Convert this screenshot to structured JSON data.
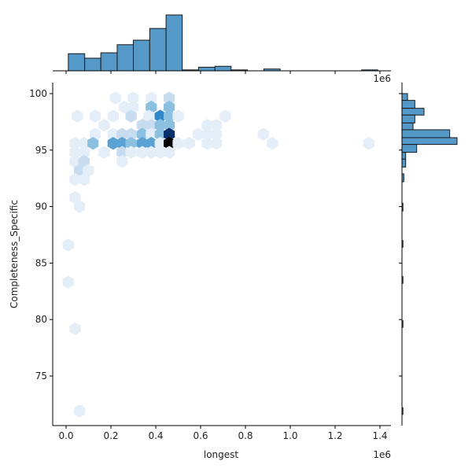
{
  "chart_data": {
    "type": "hexbin",
    "kind": "jointplot",
    "title": "",
    "xlabel": "longest",
    "ylabel": "Completeness_Specific",
    "x_offset_label": "1e6",
    "top_offset_label": "1e6",
    "xlim": [
      -0.05,
      1.45
    ],
    "ylim": [
      70.5,
      101
    ],
    "x_ticks": [
      0.0,
      0.2,
      0.4,
      0.6,
      0.8,
      1.0,
      1.2,
      1.4
    ],
    "x_tick_labels": [
      "0.0",
      "0.2",
      "0.4",
      "0.6",
      "0.8",
      "1.0",
      "1.2",
      "1.4"
    ],
    "y_ticks": [
      75,
      80,
      85,
      90,
      95,
      100
    ],
    "y_tick_labels": [
      "75",
      "80",
      "85",
      "90",
      "95",
      "100"
    ],
    "colormap": "Blues",
    "hexbins": [
      {
        "x": 0.22,
        "y": 99.6,
        "level": 1
      },
      {
        "x": 0.3,
        "y": 99.6,
        "level": 1
      },
      {
        "x": 0.38,
        "y": 99.6,
        "level": 1
      },
      {
        "x": 0.46,
        "y": 99.6,
        "level": 2
      },
      {
        "x": 0.26,
        "y": 98.8,
        "level": 1
      },
      {
        "x": 0.3,
        "y": 98.8,
        "level": 1
      },
      {
        "x": 0.38,
        "y": 98.8,
        "level": 3
      },
      {
        "x": 0.46,
        "y": 98.8,
        "level": 3
      },
      {
        "x": 0.05,
        "y": 98.0,
        "level": 1
      },
      {
        "x": 0.13,
        "y": 98.0,
        "level": 1
      },
      {
        "x": 0.21,
        "y": 98.0,
        "level": 1
      },
      {
        "x": 0.29,
        "y": 98.0,
        "level": 2
      },
      {
        "x": 0.37,
        "y": 98.0,
        "level": 1
      },
      {
        "x": 0.42,
        "y": 98.0,
        "level": 5
      },
      {
        "x": 0.46,
        "y": 98.0,
        "level": 3
      },
      {
        "x": 0.5,
        "y": 98.0,
        "level": 1
      },
      {
        "x": 0.71,
        "y": 98.0,
        "level": 1
      },
      {
        "x": 0.17,
        "y": 97.2,
        "level": 1
      },
      {
        "x": 0.34,
        "y": 97.2,
        "level": 2
      },
      {
        "x": 0.38,
        "y": 97.2,
        "level": 2
      },
      {
        "x": 0.42,
        "y": 97.2,
        "level": 3
      },
      {
        "x": 0.46,
        "y": 97.2,
        "level": 3
      },
      {
        "x": 0.63,
        "y": 97.2,
        "level": 1
      },
      {
        "x": 0.67,
        "y": 97.2,
        "level": 1
      },
      {
        "x": 0.13,
        "y": 96.4,
        "level": 1
      },
      {
        "x": 0.21,
        "y": 96.4,
        "level": 1
      },
      {
        "x": 0.25,
        "y": 96.4,
        "level": 2
      },
      {
        "x": 0.29,
        "y": 96.4,
        "level": 2
      },
      {
        "x": 0.34,
        "y": 96.4,
        "level": 3
      },
      {
        "x": 0.38,
        "y": 96.4,
        "level": 1
      },
      {
        "x": 0.42,
        "y": 96.4,
        "level": 3
      },
      {
        "x": 0.46,
        "y": 96.4,
        "level": 7
      },
      {
        "x": 0.59,
        "y": 96.4,
        "level": 1
      },
      {
        "x": 0.63,
        "y": 96.4,
        "level": 1
      },
      {
        "x": 0.67,
        "y": 96.4,
        "level": 1
      },
      {
        "x": 0.88,
        "y": 96.4,
        "level": 1
      },
      {
        "x": 0.04,
        "y": 95.6,
        "level": 1
      },
      {
        "x": 0.08,
        "y": 95.6,
        "level": 1
      },
      {
        "x": 0.12,
        "y": 95.6,
        "level": 3
      },
      {
        "x": 0.21,
        "y": 95.6,
        "level": 4
      },
      {
        "x": 0.25,
        "y": 95.6,
        "level": 4
      },
      {
        "x": 0.29,
        "y": 95.6,
        "level": 3
      },
      {
        "x": 0.34,
        "y": 95.6,
        "level": 4
      },
      {
        "x": 0.38,
        "y": 95.6,
        "level": 4
      },
      {
        "x": 0.42,
        "y": 95.6,
        "level": 1
      },
      {
        "x": 0.46,
        "y": 95.6,
        "level": 8
      },
      {
        "x": 0.5,
        "y": 95.6,
        "level": 1
      },
      {
        "x": 0.55,
        "y": 95.6,
        "level": 1
      },
      {
        "x": 0.63,
        "y": 95.6,
        "level": 1
      },
      {
        "x": 0.67,
        "y": 95.6,
        "level": 1
      },
      {
        "x": 0.92,
        "y": 95.6,
        "level": 1
      },
      {
        "x": 1.35,
        "y": 95.6,
        "level": 1
      },
      {
        "x": 0.04,
        "y": 94.8,
        "level": 1
      },
      {
        "x": 0.08,
        "y": 94.8,
        "level": 1
      },
      {
        "x": 0.17,
        "y": 94.8,
        "level": 1
      },
      {
        "x": 0.25,
        "y": 94.8,
        "level": 2
      },
      {
        "x": 0.29,
        "y": 94.8,
        "level": 1
      },
      {
        "x": 0.34,
        "y": 94.8,
        "level": 1
      },
      {
        "x": 0.38,
        "y": 94.8,
        "level": 1
      },
      {
        "x": 0.42,
        "y": 94.8,
        "level": 1
      },
      {
        "x": 0.46,
        "y": 94.8,
        "level": 1
      },
      {
        "x": 0.04,
        "y": 94.0,
        "level": 1
      },
      {
        "x": 0.08,
        "y": 94.0,
        "level": 2
      },
      {
        "x": 0.25,
        "y": 94.0,
        "level": 1
      },
      {
        "x": 0.06,
        "y": 93.2,
        "level": 2
      },
      {
        "x": 0.1,
        "y": 93.2,
        "level": 1
      },
      {
        "x": 0.04,
        "y": 92.4,
        "level": 1
      },
      {
        "x": 0.08,
        "y": 92.4,
        "level": 1
      },
      {
        "x": 0.04,
        "y": 90.8,
        "level": 1
      },
      {
        "x": 0.06,
        "y": 90.0,
        "level": 1
      },
      {
        "x": 0.01,
        "y": 86.6,
        "level": 1
      },
      {
        "x": 0.01,
        "y": 83.3,
        "level": 1
      },
      {
        "x": 0.04,
        "y": 79.2,
        "level": 1
      },
      {
        "x": 0.06,
        "y": 71.9,
        "level": 1
      }
    ],
    "marginal_x": {
      "type": "bar",
      "bin_edges": [
        0.01,
        0.083,
        0.155,
        0.228,
        0.3,
        0.373,
        0.446,
        0.518,
        0.591,
        0.664,
        0.736,
        0.809,
        0.882,
        0.955,
        1.027,
        1.1,
        1.173,
        1.245,
        1.318,
        1.39
      ],
      "counts": [
        19,
        14,
        20,
        29,
        34,
        47,
        62,
        1,
        4,
        5,
        1,
        0,
        2,
        0,
        0,
        0,
        0,
        0,
        1
      ]
    },
    "marginal_y": {
      "type": "bar",
      "bins": [
        {
          "y_lo": 99.4,
          "y_hi": 100.0,
          "count": 3
        },
        {
          "y_lo": 98.7,
          "y_hi": 99.4,
          "count": 7
        },
        {
          "y_lo": 98.1,
          "y_hi": 98.7,
          "count": 12
        },
        {
          "y_lo": 97.4,
          "y_hi": 98.1,
          "count": 7
        },
        {
          "y_lo": 96.8,
          "y_hi": 97.4,
          "count": 6
        },
        {
          "y_lo": 96.1,
          "y_hi": 96.8,
          "count": 26
        },
        {
          "y_lo": 95.5,
          "y_hi": 96.1,
          "count": 30
        },
        {
          "y_lo": 94.8,
          "y_hi": 95.5,
          "count": 8
        },
        {
          "y_lo": 94.2,
          "y_hi": 94.8,
          "count": 2
        },
        {
          "y_lo": 93.5,
          "y_hi": 94.2,
          "count": 2
        },
        {
          "y_lo": 92.2,
          "y_hi": 92.9,
          "count": 1
        },
        {
          "y_lo": 89.6,
          "y_hi": 90.3,
          "count": 0.3
        },
        {
          "y_lo": 86.4,
          "y_hi": 87.0,
          "count": 0.3
        },
        {
          "y_lo": 83.2,
          "y_hi": 83.8,
          "count": 0.3
        },
        {
          "y_lo": 79.3,
          "y_hi": 79.9,
          "count": 0.3
        },
        {
          "y_lo": 71.6,
          "y_hi": 72.2,
          "count": 0.3
        }
      ]
    },
    "colors": {
      "bar_fill": "#5599c8",
      "bar_edge": "#1a1a1a",
      "levels": [
        "#ffffff",
        "#e3eef9",
        "#c8dcf0",
        "#8cc0e1",
        "#5aa2d3",
        "#2f88cc",
        "#1f6fb6",
        "#08306b",
        "#000000"
      ]
    }
  }
}
